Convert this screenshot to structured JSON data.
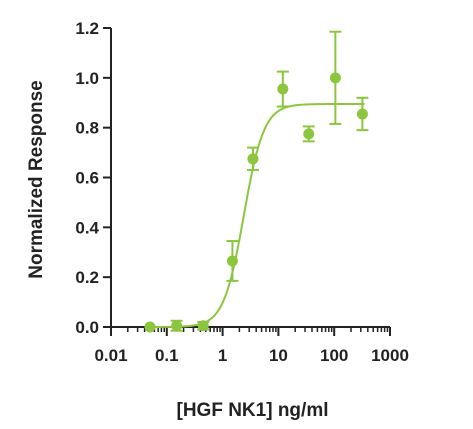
{
  "chart_data": {
    "type": "scatter",
    "xlabel": "[HGF NK1] ng/ml",
    "ylabel": "Normalized Response",
    "x_scale": "log10",
    "xlim": [
      0.01,
      1000
    ],
    "ylim": [
      0.0,
      1.2
    ],
    "x_ticks": [
      0.01,
      0.1,
      1,
      10,
      100,
      1000
    ],
    "x_tick_labels": [
      "0.01",
      "0.1",
      "1",
      "10",
      "100",
      "1000"
    ],
    "y_ticks": [
      0.0,
      0.2,
      0.4,
      0.6,
      0.8,
      1.0,
      1.2
    ],
    "y_tick_labels": [
      "0.0",
      "0.2",
      "0.4",
      "0.6",
      "0.8",
      "1.0",
      "1.2"
    ],
    "grid": false,
    "legend": "none",
    "series": [
      {
        "color": "#8cc63f",
        "points": [
          {
            "x": 0.05,
            "y": 0.0,
            "err": 0.005
          },
          {
            "x": 0.15,
            "y": 0.005,
            "err": 0.02
          },
          {
            "x": 0.45,
            "y": 0.005,
            "err": 0.015
          },
          {
            "x": 1.5,
            "y": 0.265,
            "err": 0.08
          },
          {
            "x": 3.5,
            "y": 0.675,
            "err": 0.045
          },
          {
            "x": 12,
            "y": 0.955,
            "err": 0.07
          },
          {
            "x": 35,
            "y": 0.775,
            "err": 0.03
          },
          {
            "x": 105,
            "y": 1.0,
            "err": 0.185
          },
          {
            "x": 320,
            "y": 0.855,
            "err": 0.065
          }
        ],
        "fit": {
          "type": "four-parameter logistic",
          "bottom": 0.0,
          "top": 0.895,
          "ec50": 2.4,
          "hill": 2.4
        }
      }
    ]
  }
}
